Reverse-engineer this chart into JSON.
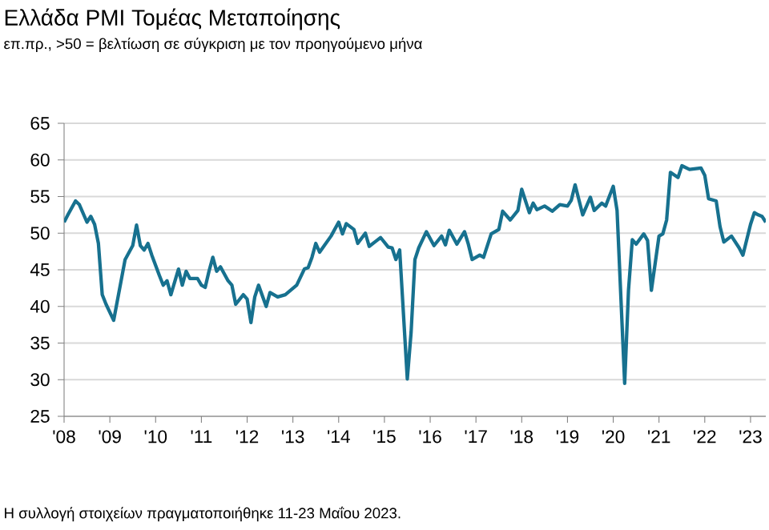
{
  "chart_data": {
    "type": "line",
    "title": "Ελλάδα PMI Τομέας Μεταποίησης",
    "subtitle": "επ.πρ., >50 = βελτίωση σε σύγκριση με τον προηγούμενο μήνα",
    "annotations": [
      "Η συλλογή στοιχείων πραγματοποιήθηκε 11-23 Μαΐου 2023."
    ],
    "x": [
      "2008-01",
      "2008-02",
      "2008-04",
      "2008-05",
      "2008-07",
      "2008-08",
      "2008-09",
      "2008-10",
      "2008-11",
      "2008-12",
      "2009-02",
      "2009-05",
      "2009-07",
      "2009-08",
      "2009-09",
      "2009-10",
      "2009-11",
      "2009-12",
      "2010-02",
      "2010-03",
      "2010-04",
      "2010-05",
      "2010-07",
      "2010-08",
      "2010-09",
      "2010-10",
      "2010-12",
      "2011-01",
      "2011-02",
      "2011-03",
      "2011-04",
      "2011-05",
      "2011-06",
      "2011-08",
      "2011-09",
      "2011-10",
      "2011-12",
      "2012-01",
      "2012-02",
      "2012-03",
      "2012-04",
      "2012-06",
      "2012-07",
      "2012-09",
      "2012-11",
      "2013-02",
      "2013-04",
      "2013-05",
      "2013-06",
      "2013-07",
      "2013-08",
      "2013-11",
      "2014-01",
      "2014-02",
      "2014-03",
      "2014-05",
      "2014-06",
      "2014-08",
      "2014-09",
      "2014-11",
      "2014-12",
      "2015-02",
      "2015-03",
      "2015-04",
      "2015-05",
      "2015-07",
      "2015-08",
      "2015-09",
      "2015-10",
      "2015-12",
      "2016-02",
      "2016-04",
      "2016-05",
      "2016-06",
      "2016-08",
      "2016-10",
      "2016-11",
      "2016-12",
      "2017-02",
      "2017-03",
      "2017-05",
      "2017-07",
      "2017-08",
      "2017-10",
      "2017-12",
      "2018-01",
      "2018-02",
      "2018-03",
      "2018-04",
      "2018-05",
      "2018-07",
      "2018-09",
      "2018-11",
      "2019-01",
      "2019-02",
      "2019-03",
      "2019-05",
      "2019-07",
      "2019-08",
      "2019-10",
      "2019-11",
      "2020-01",
      "2020-02",
      "2020-04",
      "2020-05",
      "2020-06",
      "2020-07",
      "2020-09",
      "2020-10",
      "2020-11",
      "2021-01",
      "2021-02",
      "2021-03",
      "2021-04",
      "2021-06",
      "2021-07",
      "2021-09",
      "2021-12",
      "2022-01",
      "2022-02",
      "2022-04",
      "2022-05",
      "2022-06",
      "2022-08",
      "2022-10",
      "2022-11",
      "2023-01",
      "2023-02",
      "2023-03",
      "2023-04",
      "2023-05"
    ],
    "series": [
      {
        "color": "#17718f",
        "values": [
          51.5,
          52.5,
          54.4,
          53.9,
          51.5,
          52.3,
          51.2,
          48.6,
          41.6,
          40.3,
          38.1,
          46.4,
          48.3,
          51.1,
          48.3,
          47.7,
          48.6,
          47,
          44.2,
          42.9,
          43.5,
          41.6,
          45.1,
          42.9,
          44.8,
          43.8,
          43.8,
          42.9,
          42.6,
          44.8,
          46.7,
          44.8,
          45.4,
          43.5,
          42.9,
          40.3,
          41.6,
          41,
          37.8,
          41.3,
          42.9,
          40,
          41.9,
          41.3,
          41.6,
          42.9,
          45.1,
          45.3,
          46.7,
          48.6,
          47.4,
          49.6,
          51.5,
          49.9,
          51.3,
          50.5,
          48.6,
          50,
          48.2,
          49,
          49.4,
          48.1,
          48,
          46.4,
          47.7,
          30.1,
          36.5,
          46.4,
          48,
          50.2,
          48.3,
          49.6,
          48.4,
          50.4,
          48.5,
          50.2,
          48.5,
          46.4,
          47,
          46.7,
          49.9,
          50.5,
          53,
          51.8,
          53.1,
          56,
          54.4,
          52.8,
          54.1,
          53.2,
          53.7,
          53,
          53.9,
          53.7,
          54.5,
          56.6,
          52.5,
          54.9,
          53.1,
          54.1,
          53.7,
          56.4,
          53.1,
          29.5,
          42.2,
          49.1,
          48.5,
          49.9,
          49,
          42.2,
          49.6,
          49.9,
          51.8,
          58.3,
          57.6,
          59.2,
          58.7,
          58.9,
          57.9,
          54.7,
          54.4,
          50.9,
          48.8,
          49.6,
          48,
          47,
          51.2,
          52.8,
          52.5,
          52.3,
          51.5
        ]
      }
    ],
    "xlim": [
      "2008-01",
      "2023-05"
    ],
    "xticks": [
      {
        "value": "2008-01",
        "label": "'08"
      },
      {
        "value": "2009-01",
        "label": "'09"
      },
      {
        "value": "2010-01",
        "label": "'10"
      },
      {
        "value": "2011-01",
        "label": "'11"
      },
      {
        "value": "2012-01",
        "label": "'12"
      },
      {
        "value": "2013-01",
        "label": "'13"
      },
      {
        "value": "2014-01",
        "label": "'14"
      },
      {
        "value": "2015-01",
        "label": "'15"
      },
      {
        "value": "2016-01",
        "label": "'16"
      },
      {
        "value": "2017-01",
        "label": "'17"
      },
      {
        "value": "2018-01",
        "label": "'18"
      },
      {
        "value": "2019-01",
        "label": "'19"
      },
      {
        "value": "2020-01",
        "label": "'20"
      },
      {
        "value": "2021-01",
        "label": "'21"
      },
      {
        "value": "2022-01",
        "label": "'22"
      },
      {
        "value": "2023-01",
        "label": "'23"
      }
    ],
    "ylim": [
      25,
      65
    ],
    "yticks": [
      25,
      30,
      35,
      40,
      45,
      50,
      55,
      60,
      65
    ],
    "grid": "y",
    "legend": false,
    "marker": "none",
    "line_style": "solid"
  }
}
